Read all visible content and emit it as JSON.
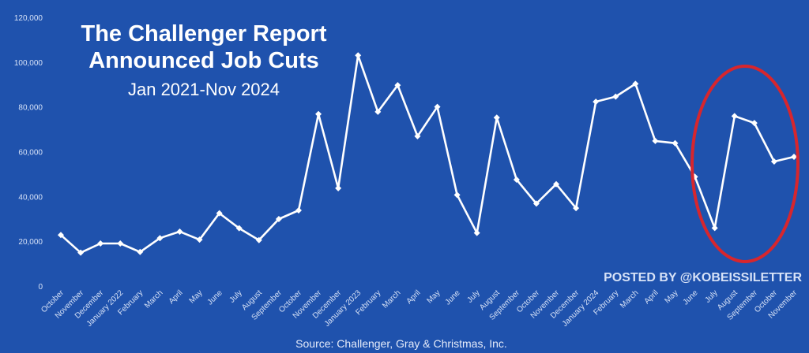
{
  "chart_data": {
    "type": "line",
    "title": "The Challenger Report",
    "subtitle": "Announced Job Cuts",
    "subtitle2": "Jan 2021-Nov 2024",
    "ylim": [
      0,
      120000
    ],
    "yticks": [
      "0",
      "20,000",
      "40,000",
      "60,000",
      "80,000",
      "100,000",
      "120,000"
    ],
    "ytick_values": [
      0,
      20000,
      40000,
      60000,
      80000,
      100000,
      120000
    ],
    "categories": [
      "October",
      "November",
      "December",
      "January 2022",
      "February",
      "March",
      "April",
      "May",
      "June",
      "July",
      "August",
      "September",
      "October",
      "November",
      "December",
      "January 2023",
      "February",
      "March",
      "April",
      "May",
      "June",
      "July",
      "August",
      "September",
      "October",
      "November",
      "December",
      "January 2024",
      "February",
      "March",
      "April",
      "May",
      "June",
      "July",
      "August",
      "September",
      "October",
      "November"
    ],
    "series": [
      {
        "values": [
          22800,
          14900,
          19000,
          19000,
          15200,
          21400,
          24300,
          20700,
          32500,
          25800,
          20500,
          29900,
          33800,
          76800,
          43700,
          103000,
          77800,
          89700,
          66900,
          80000,
          40700,
          23700,
          75200,
          47500,
          36800,
          45500,
          34800,
          82300,
          84600,
          90300,
          64800,
          63800,
          48800,
          25900,
          75900,
          72800,
          55600,
          57700
        ]
      }
    ],
    "grid": false,
    "legend": "none",
    "colors": {
      "background": "#1f52ad",
      "line": "#ffffff",
      "highlight": "#d7262d"
    },
    "watermark": "POSTED BY @KOBEISSILETTER",
    "source": "Source: Challenger, Gray & Christmas, Inc."
  }
}
